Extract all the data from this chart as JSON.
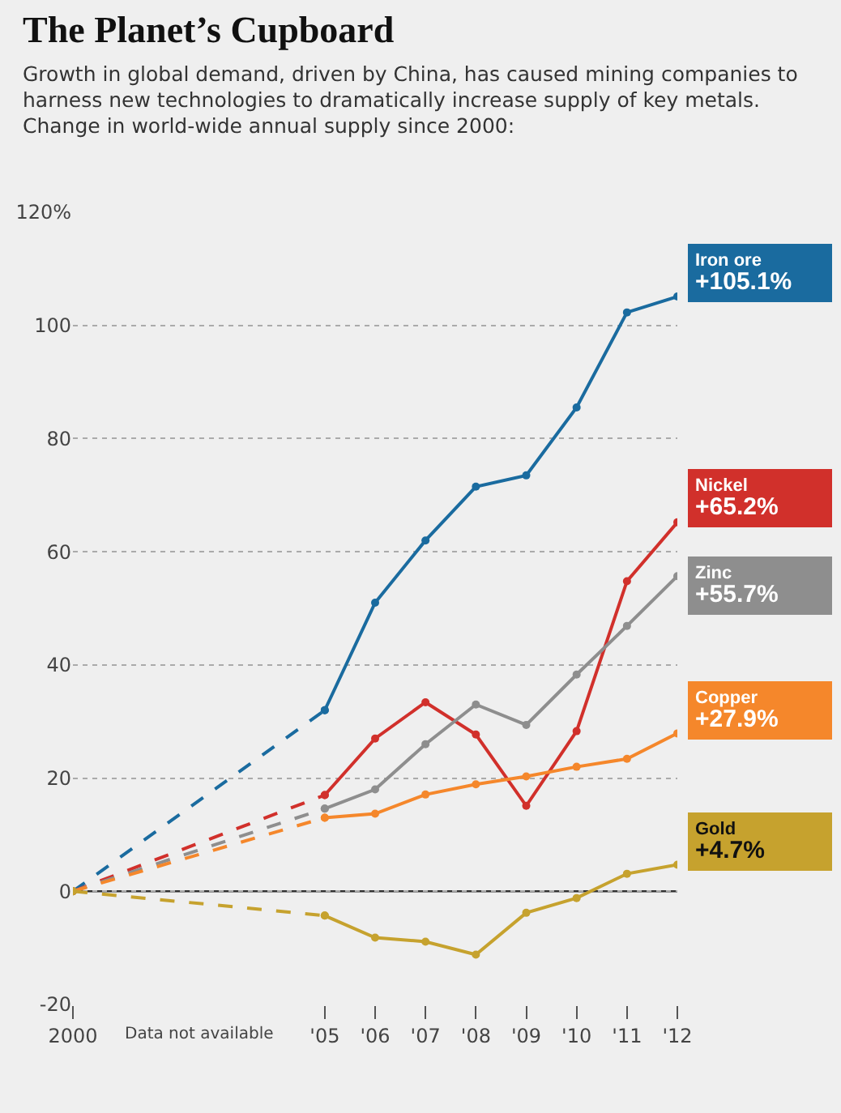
{
  "chart_data": {
    "type": "line",
    "title": "The Planet’s Cupboard",
    "subtitle": "Growth in global demand, driven by China, has caused mining companies to harness new technologies to dramatically increase supply of key metals. Change in world-wide annual supply since 2000:",
    "x": [
      2000,
      2005,
      2006,
      2007,
      2008,
      2009,
      2010,
      2011,
      2012
    ],
    "series": [
      {
        "name": "Iron ore",
        "color": "#1a6b9f",
        "values": [
          0,
          32,
          51,
          62,
          71.5,
          73.5,
          85.5,
          102.3,
          105.1
        ],
        "value_labels": [
          null,
          null,
          null,
          null,
          null,
          null,
          null,
          null,
          "+105.1%"
        ]
      },
      {
        "name": "Nickel",
        "color": "#d1302b",
        "values": [
          0,
          17,
          27,
          33.4,
          27.7,
          15.1,
          28.3,
          54.8,
          65.2
        ],
        "value_labels": [
          null,
          null,
          null,
          null,
          null,
          null,
          null,
          null,
          "+65.2%"
        ]
      },
      {
        "name": "Zinc",
        "color": "#8e8e8e",
        "values": [
          0,
          14.6,
          18,
          26,
          33,
          29.4,
          38.3,
          46.9,
          55.7
        ],
        "value_labels": [
          null,
          null,
          null,
          null,
          null,
          null,
          null,
          null,
          "+55.7%"
        ]
      },
      {
        "name": "Copper",
        "color": "#f5872b",
        "values": [
          0,
          13,
          13.7,
          17.1,
          18.9,
          20.3,
          22,
          23.4,
          27.9
        ],
        "value_labels": [
          null,
          null,
          null,
          null,
          null,
          null,
          null,
          null,
          "+27.9%"
        ]
      },
      {
        "name": "Gold",
        "color": "#c6a22e",
        "values": [
          0,
          -4.3,
          -8.2,
          -8.9,
          -11.2,
          -3.8,
          -1.2,
          3.1,
          4.7
        ],
        "value_labels": [
          null,
          null,
          null,
          null,
          null,
          null,
          null,
          null,
          "+4.7%"
        ]
      }
    ],
    "xlim": [
      2000,
      2012
    ],
    "xticks": [
      {
        "value": 2000,
        "label": "2000"
      },
      {
        "value": 2005,
        "label": "'05"
      },
      {
        "value": 2006,
        "label": "'06"
      },
      {
        "value": 2007,
        "label": "'07"
      },
      {
        "value": 2008,
        "label": "'08"
      },
      {
        "value": 2009,
        "label": "'09"
      },
      {
        "value": 2010,
        "label": "'10"
      },
      {
        "value": 2011,
        "label": "'11"
      },
      {
        "value": 2012,
        "label": "'12"
      }
    ],
    "ylim": [
      -20,
      120
    ],
    "yticks": [
      -20,
      0,
      20,
      40,
      60,
      80,
      100,
      {
        "value": 120,
        "label": "120%"
      }
    ],
    "ref_lines": [
      {
        "axis": "y",
        "value": 0,
        "label": null,
        "color": "#333333"
      }
    ],
    "annotations": [
      "Data not available"
    ],
    "grid": "y",
    "marker": "circle",
    "line_style": "solid"
  }
}
